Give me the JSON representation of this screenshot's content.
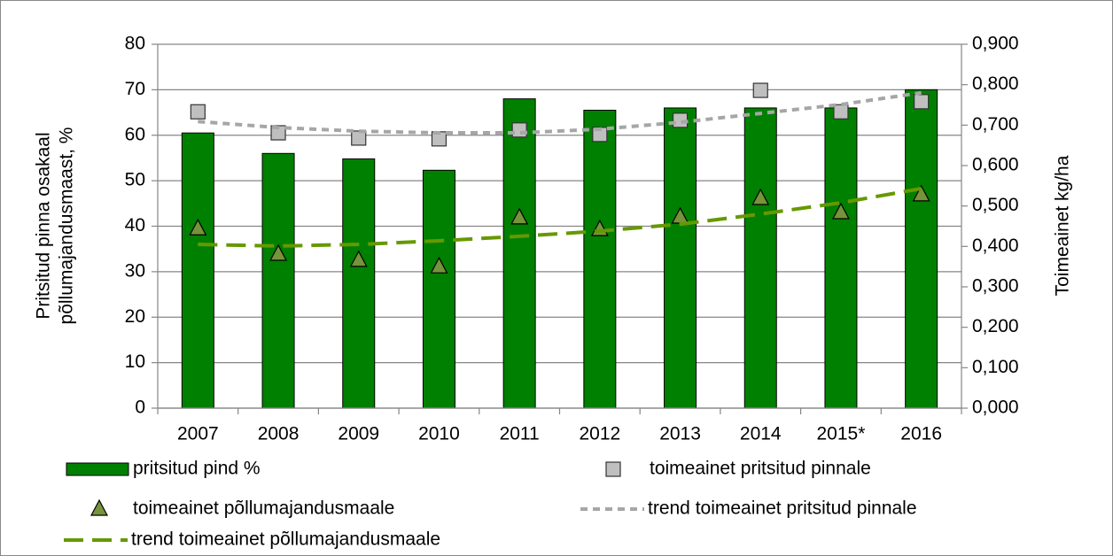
{
  "chart_data": {
    "type": "bar",
    "ylabel": [
      "Pritsitud pinna osakaal",
      "põllumajandusmaast, %"
    ],
    "y2label": "Toimeainet kg/ha",
    "categories": [
      "2007",
      "2008",
      "2009",
      "2010",
      "2011",
      "2012",
      "2013",
      "2014",
      "2015*",
      "2016"
    ],
    "ylim": [
      0,
      80
    ],
    "yticks": [
      0,
      10,
      20,
      30,
      40,
      50,
      60,
      70,
      80
    ],
    "y2lim": [
      0,
      0.9
    ],
    "y2ticks": [
      {
        "value": 0,
        "label": "0,000"
      },
      {
        "value": 0.1,
        "label": "0,100"
      },
      {
        "value": 0.2,
        "label": "0,200"
      },
      {
        "value": 0.3,
        "label": "0,300"
      },
      {
        "value": 0.4,
        "label": "0,400"
      },
      {
        "value": 0.5,
        "label": "0,500"
      },
      {
        "value": 0.6,
        "label": "0,600"
      },
      {
        "value": 0.7,
        "label": "0,700"
      },
      {
        "value": 0.8,
        "label": "0,800"
      },
      {
        "value": 0.9,
        "label": "0,900"
      }
    ],
    "grid": true,
    "series": [
      {
        "name": "pritsitud pind %",
        "type": "bar",
        "color": "#008000",
        "values": [
          60.5,
          56,
          54.8,
          52.3,
          68,
          65.5,
          66,
          66,
          66,
          70
        ]
      },
      {
        "name": "toimeainet pritsitud pinnale",
        "type": "scatter",
        "marker": "square",
        "color": "#bfbfbf",
        "axis": "y2",
        "values": [
          0.733,
          0.681,
          0.668,
          0.666,
          0.688,
          0.677,
          0.712,
          0.786,
          0.733,
          0.758
        ]
      },
      {
        "name": "toimeainet põllumajandusmaale",
        "type": "scatter",
        "marker": "triangle",
        "color": "#77933c",
        "axis": "y2",
        "values": [
          0.444,
          0.381,
          0.366,
          0.35,
          0.471,
          0.442,
          0.473,
          0.519,
          0.484,
          0.528
        ]
      },
      {
        "name": "trend toimeainet pritsitud pinnale",
        "type": "line",
        "dash": "short",
        "color": "#a6a6a6",
        "axis": "y2",
        "values": [
          0.709,
          0.694,
          0.685,
          0.681,
          0.681,
          0.69,
          0.707,
          0.729,
          0.751,
          0.78
        ]
      },
      {
        "name": "trend toimeainet põllumajandusmaale",
        "type": "line",
        "dash": "long",
        "color": "#669900",
        "axis": "y2",
        "values": [
          0.405,
          0.401,
          0.405,
          0.414,
          0.425,
          0.438,
          0.455,
          0.48,
          0.508,
          0.543
        ]
      }
    ]
  }
}
